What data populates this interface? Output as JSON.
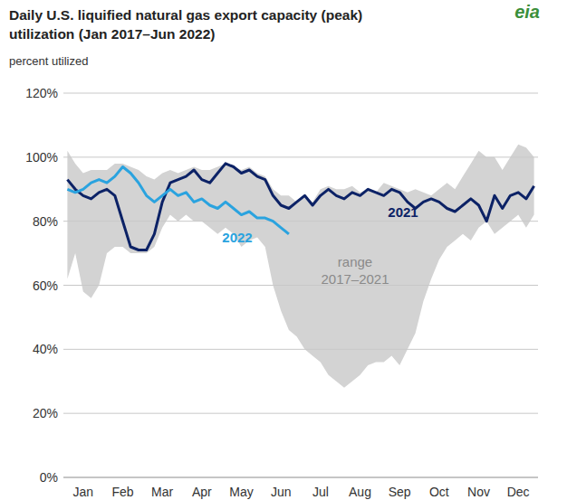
{
  "chart_data": {
    "type": "line",
    "title": [
      "Daily U.S. liquified natural gas export capacity (peak)",
      "utilization (Jan 2017–Jun 2022)"
    ],
    "subtitle": "percent utilized",
    "logo": "eia",
    "categories": [
      null,
      null,
      "Jan",
      null,
      null,
      null,
      null,
      "Feb",
      null,
      null,
      null,
      null,
      "Mar",
      null,
      null,
      null,
      null,
      "Apr",
      null,
      null,
      null,
      null,
      "May",
      null,
      null,
      null,
      null,
      "Jun",
      null,
      null,
      null,
      null,
      "Jul",
      null,
      null,
      null,
      null,
      "Aug",
      null,
      null,
      null,
      null,
      "Sep",
      null,
      null,
      null,
      null,
      "Oct",
      null,
      null,
      null,
      null,
      "Nov",
      null,
      null,
      null,
      null,
      "Dec",
      null,
      null
    ],
    "ylim": [
      0,
      120
    ],
    "yticks": [
      {
        "value": 0,
        "label": "0%"
      },
      {
        "value": 20,
        "label": "20%"
      },
      {
        "value": 40,
        "label": "40%"
      },
      {
        "value": 60,
        "label": "60%"
      },
      {
        "value": 80,
        "label": "80%"
      },
      {
        "value": 100,
        "label": "100%"
      },
      {
        "value": 120,
        "label": "120%"
      }
    ],
    "grid": true,
    "series": [
      {
        "name": "range 2017–2021",
        "type": "band",
        "color": "#d3d3d3",
        "values": [
          102,
          98,
          95,
          96,
          96,
          96,
          98,
          98,
          97,
          96,
          94,
          93,
          95,
          96,
          95,
          96,
          97,
          96,
          96,
          97,
          98,
          97,
          96,
          97,
          95,
          94,
          90,
          88,
          88,
          86,
          88,
          86,
          90,
          91,
          90,
          90,
          91,
          89,
          90,
          89,
          92,
          91,
          90,
          89,
          90,
          89,
          88,
          90,
          92,
          90,
          94,
          98,
          102,
          100,
          100,
          96,
          100,
          104,
          103,
          100
        ],
        "low": [
          62,
          70,
          58,
          56,
          60,
          70,
          72,
          72,
          70,
          70,
          70,
          72,
          78,
          82,
          80,
          82,
          80,
          80,
          78,
          76,
          78,
          76,
          72,
          74,
          75,
          72,
          60,
          52,
          46,
          44,
          40,
          38,
          36,
          32,
          30,
          28,
          30,
          32,
          35,
          36,
          36,
          38,
          35,
          40,
          45,
          55,
          62,
          68,
          72,
          74,
          76,
          74,
          78,
          80,
          76,
          78,
          80,
          82,
          78,
          82
        ]
      },
      {
        "name": "2021",
        "type": "line",
        "color": "#0c2266",
        "values": [
          93,
          90,
          88,
          87,
          89,
          90,
          88,
          80,
          72,
          71,
          71,
          76,
          86,
          92,
          93,
          94,
          96,
          93,
          92,
          95,
          98,
          97,
          95,
          96,
          94,
          93,
          88,
          85,
          84,
          86,
          88,
          85,
          88,
          90,
          88,
          87,
          89,
          88,
          90,
          89,
          88,
          90,
          89,
          86,
          84,
          86,
          87,
          86,
          84,
          83,
          85,
          87,
          85,
          80,
          88,
          84,
          88,
          89,
          87,
          91
        ]
      },
      {
        "name": "2022",
        "type": "line",
        "color": "#2aa3df",
        "values": [
          90,
          89,
          90,
          92,
          93,
          92,
          94,
          97,
          95,
          92,
          88,
          86,
          88,
          90,
          88,
          89,
          86,
          87,
          85,
          84,
          86,
          84,
          82,
          83,
          81,
          81,
          80,
          78,
          76,
          null,
          null,
          null,
          null,
          null,
          null,
          null,
          null,
          null,
          null,
          null,
          null,
          null,
          null,
          null,
          null,
          null,
          null,
          null,
          null,
          null,
          null,
          null,
          null,
          null,
          null,
          null,
          null,
          null,
          null,
          null
        ]
      }
    ]
  }
}
